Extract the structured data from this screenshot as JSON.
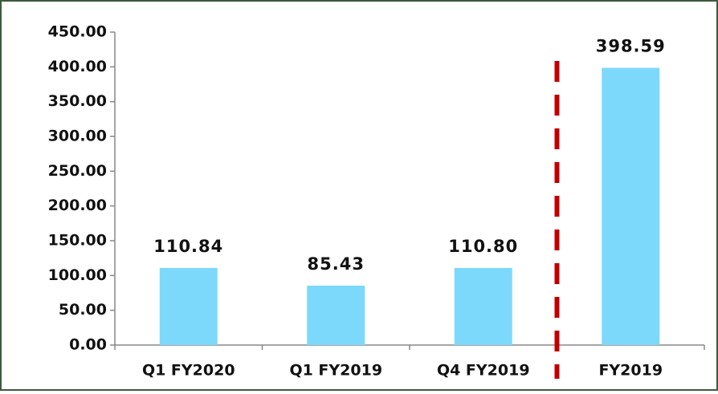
{
  "chart_data": {
    "type": "bar",
    "categories": [
      "Q1 FY2020",
      "Q1 FY2019",
      "Q4 FY2019",
      "FY2019"
    ],
    "values": [
      110.84,
      85.43,
      110.8,
      398.59
    ],
    "value_labels": [
      "110.84",
      "85.43",
      "110.80",
      "398.59"
    ],
    "color": "#7dd9fc",
    "ylim": [
      0,
      450
    ],
    "yticks": [
      {
        "value": 0,
        "label": "0.00"
      },
      {
        "value": 50,
        "label": "50.00"
      },
      {
        "value": 100,
        "label": "100.00"
      },
      {
        "value": 150,
        "label": "150.00"
      },
      {
        "value": 200,
        "label": "200.00"
      },
      {
        "value": 250,
        "label": "250.00"
      },
      {
        "value": 300,
        "label": "300.00"
      },
      {
        "value": 350,
        "label": "350.00"
      },
      {
        "value": 400,
        "label": "400.00"
      },
      {
        "value": 450,
        "label": "450.00"
      }
    ],
    "grid": false
  }
}
